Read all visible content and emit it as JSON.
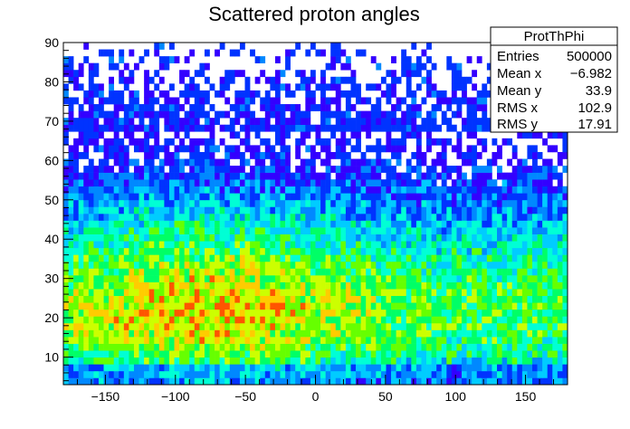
{
  "chart_data": {
    "type": "heatmap",
    "title": "Scattered proton angles",
    "xlim": [
      -180,
      180
    ],
    "ylim": [
      3,
      90
    ],
    "x_ticks": [
      -150,
      -100,
      -50,
      0,
      50,
      100,
      150
    ],
    "y_ticks": [
      10,
      20,
      30,
      40,
      50,
      60,
      70,
      80,
      90
    ],
    "nbins_x": 100,
    "nbins_y": 50,
    "palette": [
      "#ffffff",
      "#3300ff",
      "#0033ff",
      "#0088ff",
      "#00ccff",
      "#00ffd5",
      "#00ff66",
      "#66ff00",
      "#ccff00",
      "#ffcc00",
      "#ff5500",
      "#ff0000"
    ],
    "density_profile": {
      "peak_y": 20,
      "peak_x": -75,
      "description_values": {
        "low_y_cutoff": 3,
        "dense_region_y": [
          10,
          45
        ],
        "sparse_region_y": [
          70,
          90
        ]
      }
    },
    "stats_box": {
      "name": "ProtThPhi",
      "rows": [
        {
          "label": "Entries",
          "value": "500000"
        },
        {
          "label": "Mean x",
          "value": "−6.982"
        },
        {
          "label": "Mean y",
          "value": "33.9"
        },
        {
          "label": "RMS x",
          "value": "102.9"
        },
        {
          "label": "RMS y",
          "value": "17.91"
        }
      ]
    }
  }
}
